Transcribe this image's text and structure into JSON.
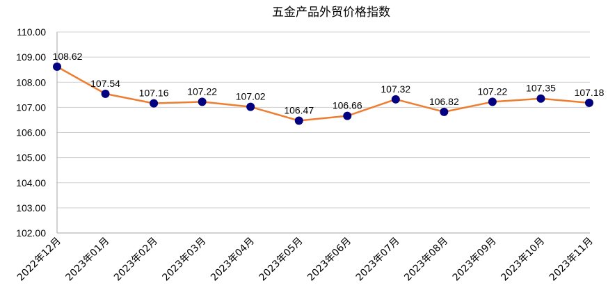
{
  "chart_data": {
    "type": "line",
    "title": "五金产品外贸价格指数",
    "xlabel": "",
    "ylabel": "",
    "categories": [
      "2022年12月",
      "2023年01月",
      "2023年02月",
      "2023年03月",
      "2023年04月",
      "2023年05月",
      "2023年06月",
      "2023年07月",
      "2023年08月",
      "2023年09月",
      "2023年10月",
      "2023年11月"
    ],
    "series": [
      {
        "values": [
          108.62,
          107.54,
          107.16,
          107.22,
          107.02,
          106.47,
          106.66,
          107.32,
          106.82,
          107.22,
          107.35,
          107.18
        ],
        "labels": [
          "108.62",
          "107.54",
          "107.16",
          "107.22",
          "107.02",
          "106.47",
          "106.66",
          "107.32",
          "106.82",
          "107.22",
          "107.35",
          "107.18"
        ]
      }
    ],
    "ylim": [
      102,
      110
    ],
    "yticks": [
      "102.00",
      "103.00",
      "104.00",
      "105.00",
      "106.00",
      "107.00",
      "108.00",
      "109.00",
      "110.00"
    ],
    "grid": true,
    "legend": "none",
    "colors": {
      "line": "#ED7D31",
      "marker": "#000080",
      "grid": "#D0D0D0",
      "axis": "#A6A6A6"
    }
  }
}
